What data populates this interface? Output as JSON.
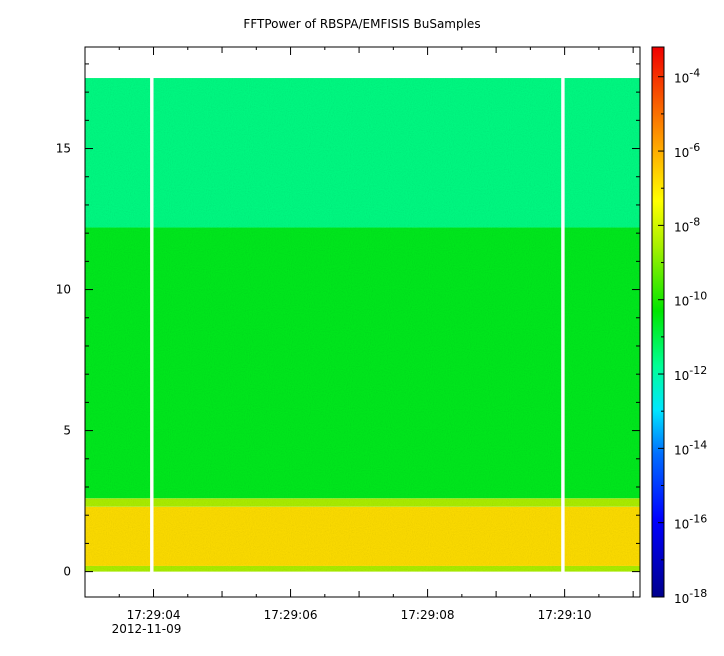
{
  "chart_data": {
    "type": "heatmap",
    "title": "FFTPower of RBSPA/EMFISIS  BuSamples",
    "xlabel": "",
    "ylabel": "",
    "x_range": [
      "17:29:03.0",
      "17:29:11.1"
    ],
    "x_ticks": [
      {
        "time": "17:29:04",
        "label": "17:29:04",
        "sublabel": "2012-11-09"
      },
      {
        "time": "17:29:06",
        "label": "17:29:06",
        "sublabel": ""
      },
      {
        "time": "17:29:08",
        "label": "17:29:08",
        "sublabel": ""
      },
      {
        "time": "17:29:10",
        "label": "17:29:10",
        "sublabel": ""
      }
    ],
    "y_range": [
      -0.9,
      18.6
    ],
    "y_ticks": [
      {
        "value": 0,
        "label": "0"
      },
      {
        "value": 5,
        "label": "5"
      },
      {
        "value": 10,
        "label": "10"
      },
      {
        "value": 15,
        "label": "15"
      }
    ],
    "y_minor_step": 1,
    "colorbar": {
      "scale": "log",
      "range": [
        -18,
        -3.2
      ],
      "ticks": [
        {
          "exp": -4,
          "label": "10-4"
        },
        {
          "exp": -6,
          "label": "10-6"
        },
        {
          "exp": -8,
          "label": "10-8"
        },
        {
          "exp": -10,
          "label": "10-10"
        },
        {
          "exp": -12,
          "label": "10-12"
        },
        {
          "exp": -14,
          "label": "10-14"
        },
        {
          "exp": -16,
          "label": "10-16"
        },
        {
          "exp": -18,
          "label": "10-18"
        }
      ]
    },
    "data_extent": {
      "t_start": "17:29:03.0",
      "t_end": "17:29:11.1",
      "f_min": 0,
      "f_max": 17.5
    },
    "bands": [
      {
        "f_from": 0.0,
        "f_to": 0.2,
        "log_power": -8.5
      },
      {
        "f_from": 0.2,
        "f_to": 2.3,
        "log_power": -6.8
      },
      {
        "f_from": 2.3,
        "f_to": 2.6,
        "log_power": -8.5
      },
      {
        "f_from": 2.6,
        "f_to": 12.2,
        "log_power": -10.6
      },
      {
        "f_from": 12.2,
        "f_to": 17.5,
        "log_power": -11.6
      }
    ],
    "gaps": [
      {
        "from": "17:29:03.95",
        "to": "17:29:04.0"
      },
      {
        "from": "17:29:09.95",
        "to": "17:29:10.0"
      }
    ]
  }
}
